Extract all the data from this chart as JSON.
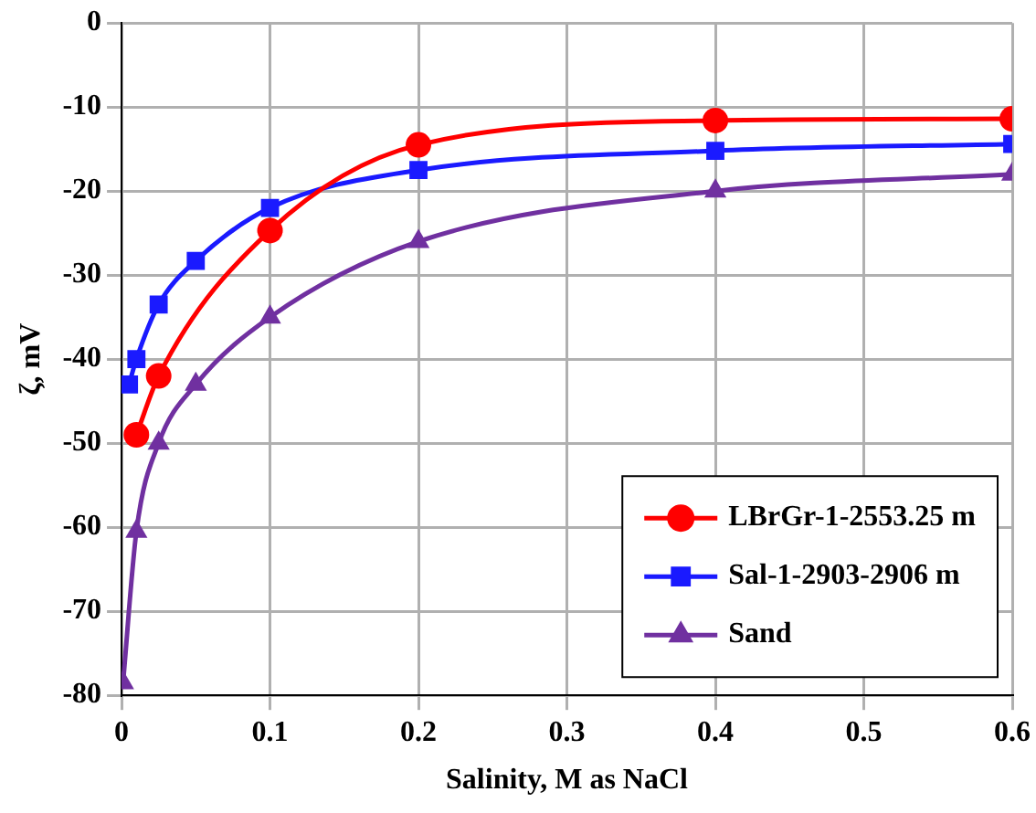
{
  "chart_data": {
    "type": "line",
    "xlabel": "Salinity, M as NaCl",
    "ylabel": "ζ, mV",
    "xlim": [
      0,
      0.6
    ],
    "xticks": [
      0,
      0.1,
      0.2,
      0.3,
      0.4,
      0.5,
      0.6
    ],
    "ylim": [
      -80,
      0
    ],
    "yticks": [
      -80,
      -70,
      -60,
      -50,
      -40,
      -30,
      -20,
      -10,
      0
    ],
    "grid": true,
    "legend": "bottom right",
    "line_style": "solid",
    "series": [
      {
        "name": "LBrGr-1-2553.25 m",
        "color": "#ff0000",
        "marker": "circle",
        "x": [
          0.01,
          0.025,
          0.1,
          0.2,
          0.4,
          0.6
        ],
        "values": [
          -49,
          -42,
          -24.7,
          -14.5,
          -11.6,
          -11.4
        ]
      },
      {
        "name": "Sal-1-2903-2906 m",
        "color": "#1a1aff",
        "marker": "square",
        "x": [
          0.005,
          0.01,
          0.025,
          0.05,
          0.1,
          0.2,
          0.4,
          0.6
        ],
        "values": [
          -43,
          -40,
          -33.5,
          -28.3,
          -22,
          -17.5,
          -15.2,
          -14.4
        ]
      },
      {
        "name": "Sand",
        "color": "#7030a0",
        "marker": "triangle",
        "x": [
          0.001,
          0.01,
          0.025,
          0.05,
          0.1,
          0.2,
          0.4,
          0.6
        ],
        "values": [
          -78.5,
          -60.5,
          -50,
          -43,
          -35,
          -26,
          -20,
          -18
        ]
      }
    ]
  }
}
